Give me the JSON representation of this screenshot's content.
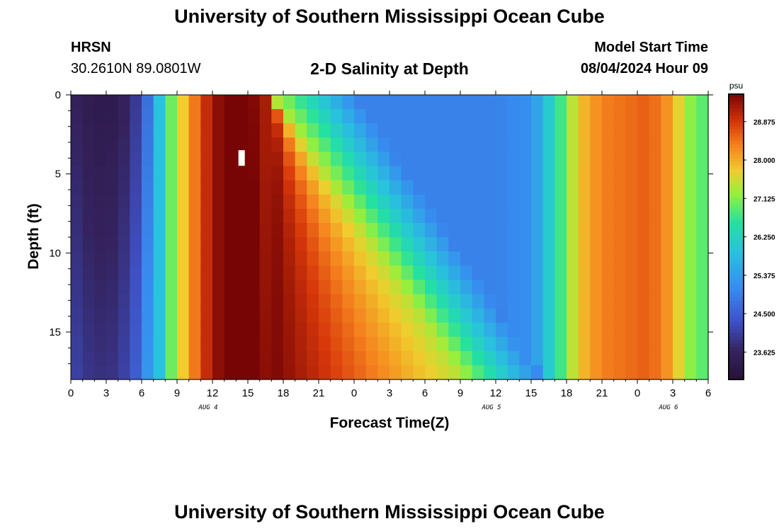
{
  "header": {
    "title": "University of Southern Mississippi Ocean Cube",
    "station": "HRSN",
    "coords": "30.2610N  89.0801W",
    "subtitle": "2-D Salinity at Depth",
    "start_label": "Model Start Time",
    "start_value": "08/04/2024 Hour 09"
  },
  "footer": {
    "title": "University of Southern Mississippi Ocean Cube"
  },
  "chart_data": {
    "type": "heatmap",
    "title": "2-D Salinity at Depth",
    "xlabel": "Forecast Time(Z)",
    "ylabel": "Depth (ft)",
    "x_range_hours": [
      0,
      54
    ],
    "y_range_ft": [
      0,
      18
    ],
    "y_inverted": true,
    "x_tick_labels": [
      "0",
      "3",
      "6",
      "9",
      "12",
      "15",
      "18",
      "21",
      "0",
      "3",
      "6",
      "9",
      "12",
      "15",
      "18",
      "21",
      "0",
      "3",
      "6"
    ],
    "y_tick_values": [
      0,
      5,
      10,
      15
    ],
    "y_tick_labels": [
      "0",
      "5",
      "10",
      "15"
    ],
    "date_labels": [
      {
        "hour": 12,
        "text": "AUG 4"
      },
      {
        "hour": 36,
        "text": "AUG 5"
      },
      {
        "hour": 51,
        "text": "AUG 6"
      }
    ],
    "colorbar": {
      "unit": "psu",
      "min": 23.0,
      "max": 29.5,
      "labels": [
        "28.875",
        "28.000",
        "27.125",
        "26.250",
        "25.375",
        "24.500",
        "23.625"
      ],
      "label_values": [
        28.875,
        28.0,
        27.125,
        26.25,
        25.375,
        24.5,
        23.625
      ]
    },
    "grid": false
  }
}
